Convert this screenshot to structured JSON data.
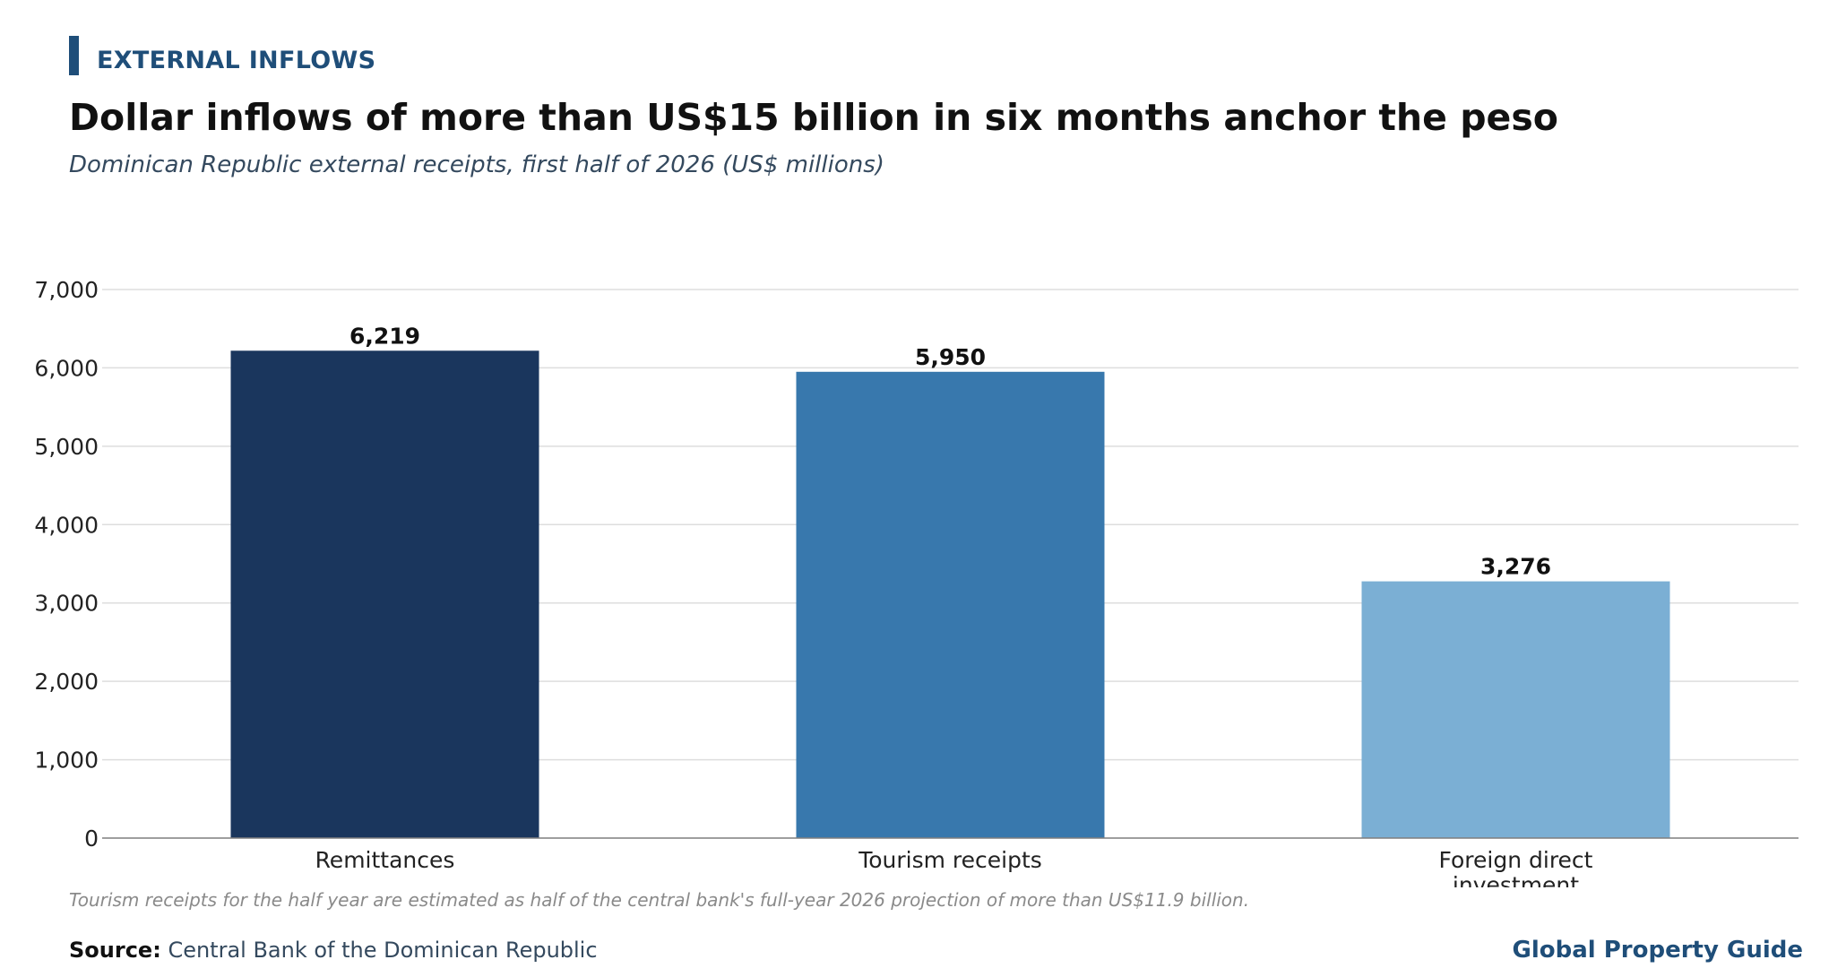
{
  "header": {
    "kicker": "EXTERNAL INFLOWS",
    "title": "Dollar inflows of more than US$15 billion in six months anchor the peso",
    "subtitle": "Dominican Republic external receipts, first half of 2026 (US$ millions)"
  },
  "chart_data": {
    "type": "bar",
    "categories": [
      "Remittances",
      "Tourism receipts",
      "Foreign direct investment"
    ],
    "category_lines": [
      [
        "Remittances"
      ],
      [
        "Tourism receipts"
      ],
      [
        "Foreign direct",
        "investment"
      ]
    ],
    "values": [
      6219,
      5950,
      3276
    ],
    "value_labels": [
      "6,219",
      "5,950",
      "3,276"
    ],
    "colors": [
      "#1a365d",
      "#3878ad",
      "#7bafd4"
    ],
    "ylim": [
      0,
      7000
    ],
    "yticks": [
      0,
      1000,
      2000,
      3000,
      4000,
      5000,
      6000,
      7000
    ],
    "ytick_labels": [
      "0",
      "1,000",
      "2,000",
      "3,000",
      "4,000",
      "5,000",
      "6,000",
      "7,000"
    ],
    "grid": true,
    "title": "",
    "xlabel": "",
    "ylabel": ""
  },
  "footer": {
    "note": "Tourism receipts for the half year are estimated as half of the central bank's full-year 2026 projection of more than US$11.9 billion.",
    "source_label": "Source:",
    "source_text": "Central Bank of the Dominican Republic",
    "brand": "Global Property Guide"
  }
}
